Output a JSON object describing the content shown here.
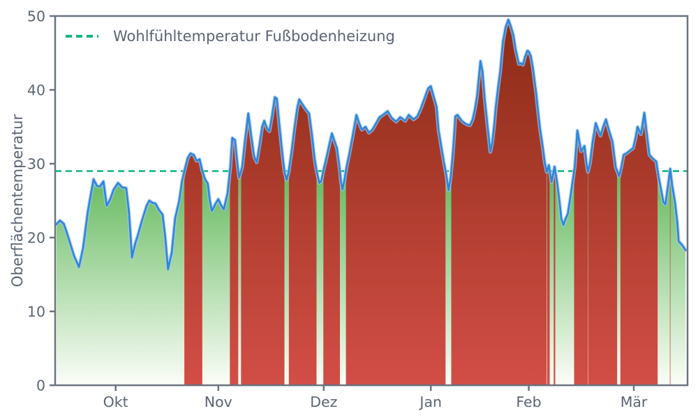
{
  "page": {
    "background": "#ffffff"
  },
  "chart_data": {
    "type": "area",
    "title": "",
    "xlabel": "",
    "ylabel": "Oberflächentemperatur",
    "ylim": [
      0,
      50
    ],
    "x_domain_days": [
      0,
      186
    ],
    "grid": false,
    "y_ticks": [
      0,
      10,
      20,
      30,
      40,
      50
    ],
    "x_ticks": [
      {
        "label": "Okt",
        "day": 17.8
      },
      {
        "label": "Nov",
        "day": 48
      },
      {
        "label": "Dez",
        "day": 79
      },
      {
        "label": "Jan",
        "day": 110.5
      },
      {
        "label": "Feb",
        "day": 139.3
      },
      {
        "label": "Mär",
        "day": 170.2
      }
    ],
    "legend": {
      "position": "upper-left",
      "entries": [
        {
          "label": "Wohlfühltemperatur Fußbodenheizung",
          "style": "dashed",
          "color": "#12b77e"
        }
      ]
    },
    "threshold": {
      "value": 29,
      "color": "#12b77e",
      "style": "dashed"
    },
    "series": [
      {
        "line_color": "#2e86d9",
        "points": [
          [
            0.4,
            21.8
          ],
          [
            1.4,
            22.3
          ],
          [
            2.5,
            21.9
          ],
          [
            3.5,
            20.6
          ],
          [
            5.5,
            17.6
          ],
          [
            7,
            16
          ],
          [
            8.2,
            18.5
          ],
          [
            9.6,
            23.5
          ],
          [
            11.3,
            27.9
          ],
          [
            12.3,
            27
          ],
          [
            13.1,
            26.9
          ],
          [
            14.2,
            27.6
          ],
          [
            15.2,
            24.3
          ],
          [
            16.2,
            25.2
          ],
          [
            17.2,
            26.5
          ],
          [
            18.5,
            27.4
          ],
          [
            19.7,
            26.8
          ],
          [
            20.9,
            26.7
          ],
          [
            21.7,
            23.5
          ],
          [
            22.6,
            17.3
          ],
          [
            23.6,
            19.3
          ],
          [
            24.2,
            20.1
          ],
          [
            25.6,
            22.4
          ],
          [
            26.9,
            24.3
          ],
          [
            27.7,
            25
          ],
          [
            28.7,
            24.7
          ],
          [
            29.5,
            24.6
          ],
          [
            30.6,
            23.7
          ],
          [
            31.6,
            23.1
          ],
          [
            32.4,
            20
          ],
          [
            33.2,
            15.7
          ],
          [
            34.3,
            18
          ],
          [
            35.3,
            22.6
          ],
          [
            36.5,
            25
          ],
          [
            37.3,
            27.6
          ],
          [
            38.1,
            29.2
          ],
          [
            39,
            30.8
          ],
          [
            39.8,
            31.4
          ],
          [
            40.8,
            31.2
          ],
          [
            41.6,
            30.4
          ],
          [
            42.5,
            30.6
          ],
          [
            43.3,
            29
          ],
          [
            44.1,
            27.9
          ],
          [
            44.9,
            27.3
          ],
          [
            45.5,
            25
          ],
          [
            46.1,
            23.6
          ],
          [
            47.2,
            24.6
          ],
          [
            48,
            25.2
          ],
          [
            48.8,
            24.4
          ],
          [
            49.6,
            23.8
          ],
          [
            50.7,
            26
          ],
          [
            51.5,
            29.5
          ],
          [
            52.1,
            33.5
          ],
          [
            52.9,
            33.2
          ],
          [
            53.5,
            30.5
          ],
          [
            54.1,
            28.1
          ],
          [
            55,
            29.5
          ],
          [
            55.8,
            33
          ],
          [
            56.8,
            36.8
          ],
          [
            57.6,
            34
          ],
          [
            58.5,
            31
          ],
          [
            59.3,
            30.2
          ],
          [
            60.1,
            32.5
          ],
          [
            60.9,
            35
          ],
          [
            61.5,
            35.8
          ],
          [
            62.3,
            34.8
          ],
          [
            63,
            34.4
          ],
          [
            63.8,
            36.5
          ],
          [
            64.6,
            39
          ],
          [
            65.2,
            38.8
          ],
          [
            66,
            35
          ],
          [
            66.9,
            31
          ],
          [
            67.5,
            28.8
          ],
          [
            68.1,
            27.8
          ],
          [
            68.7,
            28.9
          ],
          [
            69.5,
            31.5
          ],
          [
            70.3,
            34.5
          ],
          [
            71.2,
            37.5
          ],
          [
            71.8,
            38.7
          ],
          [
            72.8,
            38
          ],
          [
            73.8,
            37.3
          ],
          [
            74.7,
            36.8
          ],
          [
            75.5,
            34
          ],
          [
            76.3,
            30.7
          ],
          [
            76.9,
            29
          ],
          [
            77.7,
            27.4
          ],
          [
            78.3,
            27.7
          ],
          [
            79,
            29.3
          ],
          [
            79.8,
            30.8
          ],
          [
            80.6,
            32.5
          ],
          [
            81.4,
            34.1
          ],
          [
            82.2,
            33
          ],
          [
            82.9,
            32.1
          ],
          [
            83.7,
            29.3
          ],
          [
            84.1,
            27.5
          ],
          [
            84.5,
            26.5
          ],
          [
            85.1,
            27.8
          ],
          [
            85.7,
            29.5
          ],
          [
            86.6,
            31.5
          ],
          [
            87.6,
            34
          ],
          [
            88.6,
            36.6
          ],
          [
            89.4,
            35.5
          ],
          [
            90.2,
            34.6
          ],
          [
            91.3,
            35
          ],
          [
            92.3,
            34.2
          ],
          [
            93.3,
            34.6
          ],
          [
            94.3,
            35.4
          ],
          [
            95.4,
            36.3
          ],
          [
            96.4,
            36.6
          ],
          [
            97.8,
            37.1
          ],
          [
            99,
            36.2
          ],
          [
            100.3,
            35.7
          ],
          [
            101.5,
            36.3
          ],
          [
            103,
            35.8
          ],
          [
            104,
            36.6
          ],
          [
            105.4,
            36
          ],
          [
            106.5,
            36.4
          ],
          [
            107.5,
            37.4
          ],
          [
            108.6,
            38.8
          ],
          [
            109.7,
            40.2
          ],
          [
            110.5,
            40.5
          ],
          [
            111.4,
            39
          ],
          [
            112.2,
            37.7
          ],
          [
            112.8,
            34.5
          ],
          [
            113.5,
            32.5
          ],
          [
            114.3,
            30.3
          ],
          [
            115,
            28.6
          ],
          [
            115.7,
            26.4
          ],
          [
            116.3,
            28
          ],
          [
            116.9,
            31
          ],
          [
            117.3,
            33.5
          ],
          [
            117.7,
            36.4
          ],
          [
            118.3,
            36.6
          ],
          [
            119,
            36.2
          ],
          [
            119.6,
            35.8
          ],
          [
            120.4,
            35.5
          ],
          [
            121.2,
            35.3
          ],
          [
            122,
            35.2
          ],
          [
            122.8,
            36
          ],
          [
            123.5,
            37.5
          ],
          [
            124.1,
            39.2
          ],
          [
            124.7,
            42
          ],
          [
            125.1,
            43.9
          ],
          [
            125.7,
            42.5
          ],
          [
            126.3,
            39
          ],
          [
            127.2,
            35
          ],
          [
            128,
            31.6
          ],
          [
            128.6,
            33
          ],
          [
            129.2,
            35.5
          ],
          [
            129.6,
            37.7
          ],
          [
            130.2,
            40
          ],
          [
            130.9,
            42.5
          ],
          [
            131.7,
            46.5
          ],
          [
            132.5,
            48.5
          ],
          [
            133.3,
            49.5
          ],
          [
            133.9,
            48.8
          ],
          [
            134.8,
            47.4
          ],
          [
            135.4,
            45.6
          ],
          [
            136,
            44.3
          ],
          [
            136.4,
            43.5
          ],
          [
            137,
            43.6
          ],
          [
            137.6,
            43.4
          ],
          [
            138.2,
            44.5
          ],
          [
            138.9,
            45.3
          ],
          [
            139.3,
            45.2
          ],
          [
            139.9,
            44.6
          ],
          [
            140.5,
            43
          ],
          [
            140.9,
            41.6
          ],
          [
            141.5,
            39.5
          ],
          [
            141.9,
            37.7
          ],
          [
            142.6,
            34.8
          ],
          [
            143.4,
            32.3
          ],
          [
            144,
            30.2
          ],
          [
            144.6,
            28.9
          ],
          [
            145.2,
            29.8
          ],
          [
            146,
            27.5
          ],
          [
            146.9,
            29.6
          ],
          [
            147.7,
            27.3
          ],
          [
            148.3,
            25
          ],
          [
            148.9,
            22.5
          ],
          [
            149.5,
            21.7
          ],
          [
            150.1,
            22.5
          ],
          [
            150.8,
            23.2
          ],
          [
            151.6,
            25.6
          ],
          [
            152.2,
            27.6
          ],
          [
            152.8,
            29.5
          ],
          [
            153.6,
            34.5
          ],
          [
            154.7,
            31.7
          ],
          [
            155.7,
            32.4
          ],
          [
            156.3,
            30
          ],
          [
            156.7,
            28.9
          ],
          [
            157.3,
            30
          ],
          [
            158.1,
            33
          ],
          [
            159,
            35.5
          ],
          [
            159.8,
            34.5
          ],
          [
            160.4,
            33.8
          ],
          [
            161.2,
            35
          ],
          [
            162,
            36
          ],
          [
            162.9,
            34.5
          ],
          [
            163.9,
            33
          ],
          [
            164.9,
            29.5
          ],
          [
            165.9,
            28.3
          ],
          [
            166.5,
            29.5
          ],
          [
            167.2,
            31.2
          ],
          [
            168,
            31.4
          ],
          [
            168.6,
            31.6
          ],
          [
            169.4,
            31.9
          ],
          [
            170,
            32.1
          ],
          [
            170.7,
            33.5
          ],
          [
            171.3,
            35
          ],
          [
            172.3,
            34
          ],
          [
            173.3,
            36.9
          ],
          [
            173.9,
            34.5
          ],
          [
            174.8,
            31.2
          ],
          [
            175.8,
            30.7
          ],
          [
            176.8,
            30.3
          ],
          [
            177.4,
            28.5
          ],
          [
            178,
            27
          ],
          [
            178.9,
            24.8
          ],
          [
            179.5,
            24.5
          ],
          [
            180.1,
            26.5
          ],
          [
            180.9,
            29.3
          ],
          [
            181.5,
            27
          ],
          [
            182.3,
            24.8
          ],
          [
            183,
            22
          ],
          [
            183.4,
            19.5
          ],
          [
            184.4,
            19
          ],
          [
            185.4,
            18.3
          ]
        ]
      }
    ],
    "fills": {
      "above_threshold": {
        "top": "#8b2b16",
        "bottom": "#d24e46"
      },
      "below_threshold": {
        "top": "#63b95c",
        "bottom": "#fbfdf8"
      }
    },
    "axis": {
      "spine_color": "#6a7380",
      "text_color": "#5a6472"
    }
  }
}
